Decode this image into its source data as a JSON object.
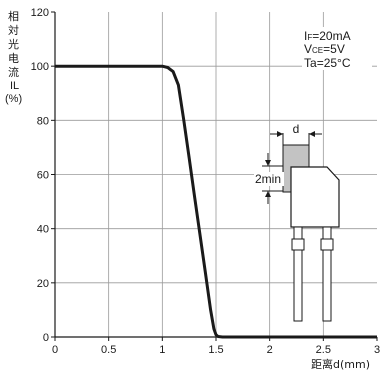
{
  "chart_data": {
    "type": "line",
    "ylabel_chars": [
      "相",
      "対",
      "光",
      "电",
      "流"
    ],
    "ylabel_symbol": "IL",
    "ylabel_unit": "(%)",
    "xlabel": "距离d(mm)",
    "xlim": [
      0,
      3
    ],
    "ylim": [
      0,
      120
    ],
    "x_ticks": [
      "0",
      "0.5",
      "1",
      "1.5",
      "2",
      "2.5",
      "3"
    ],
    "y_ticks": [
      "0",
      "20",
      "40",
      "60",
      "80",
      "100",
      "120"
    ],
    "grid": true,
    "series": [
      {
        "x": [
          0,
          0.5,
          1.0,
          1.05,
          1.1,
          1.15,
          1.2,
          1.25,
          1.3,
          1.35,
          1.4,
          1.45,
          1.48,
          1.5,
          1.52,
          1.56,
          1.6,
          2.0,
          2.5,
          3.0
        ],
        "y": [
          100,
          100,
          100,
          99.5,
          98,
          93,
          80,
          66,
          52,
          38,
          24,
          10,
          3,
          0.8,
          0.2,
          0,
          0,
          0,
          0,
          0
        ]
      }
    ],
    "conditions": [
      {
        "main": "I",
        "sub": "F",
        "rest": "=20mA"
      },
      {
        "main": "V",
        "sub": "CE",
        "rest": "=5V"
      },
      {
        "main": "Ta",
        "sub": "",
        "rest": "=25°C"
      }
    ],
    "diagram": {
      "gap_label": "d",
      "size_label": "2min"
    }
  }
}
